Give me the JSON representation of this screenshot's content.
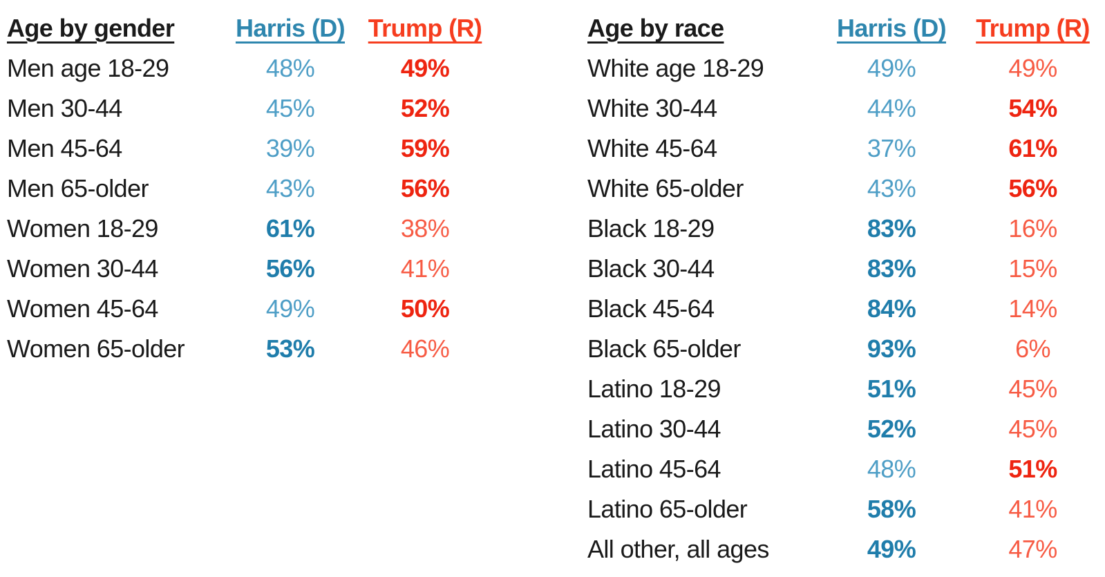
{
  "colors": {
    "background": "#ffffff",
    "text": "#1a1a1a",
    "harris_header": "#2e86ae",
    "harris_strong": "#1f7dab",
    "harris_soft": "#4e9ec6",
    "trump_header": "#f63d1f",
    "trump_strong": "#ee2410",
    "trump_soft": "#f75b44"
  },
  "tables": [
    {
      "title": "Age by gender",
      "harris_header": "Harris (D)",
      "trump_header": "Trump (R)",
      "rows": [
        {
          "label": "Men age 18-29",
          "harris": "48%",
          "harris_bold": false,
          "trump": "49%",
          "trump_bold": true
        },
        {
          "label": "Men 30-44",
          "harris": "45%",
          "harris_bold": false,
          "trump": "52%",
          "trump_bold": true
        },
        {
          "label": "Men 45-64",
          "harris": "39%",
          "harris_bold": false,
          "trump": "59%",
          "trump_bold": true
        },
        {
          "label": "Men 65-older",
          "harris": "43%",
          "harris_bold": false,
          "trump": "56%",
          "trump_bold": true
        },
        {
          "label": "Women 18-29",
          "harris": "61%",
          "harris_bold": true,
          "trump": "38%",
          "trump_bold": false
        },
        {
          "label": "Women 30-44",
          "harris": "56%",
          "harris_bold": true,
          "trump": "41%",
          "trump_bold": false
        },
        {
          "label": "Women 45-64",
          "harris": "49%",
          "harris_bold": false,
          "trump": "50%",
          "trump_bold": true
        },
        {
          "label": "Women 65-older",
          "harris": "53%",
          "harris_bold": true,
          "trump": "46%",
          "trump_bold": false
        }
      ]
    },
    {
      "title": "Age by race",
      "harris_header": "Harris (D)",
      "trump_header": "Trump (R)",
      "rows": [
        {
          "label": "White age 18-29",
          "harris": "49%",
          "harris_bold": false,
          "trump": "49%",
          "trump_bold": false
        },
        {
          "label": "White 30-44",
          "harris": "44%",
          "harris_bold": false,
          "trump": "54%",
          "trump_bold": true
        },
        {
          "label": "White 45-64",
          "harris": "37%",
          "harris_bold": false,
          "trump": "61%",
          "trump_bold": true
        },
        {
          "label": "White 65-older",
          "harris": "43%",
          "harris_bold": false,
          "trump": "56%",
          "trump_bold": true
        },
        {
          "label": "Black 18-29",
          "harris": "83%",
          "harris_bold": true,
          "trump": "16%",
          "trump_bold": false
        },
        {
          "label": "Black 30-44",
          "harris": "83%",
          "harris_bold": true,
          "trump": "15%",
          "trump_bold": false
        },
        {
          "label": "Black 45-64",
          "harris": "84%",
          "harris_bold": true,
          "trump": "14%",
          "trump_bold": false
        },
        {
          "label": "Black 65-older",
          "harris": "93%",
          "harris_bold": true,
          "trump": "6%",
          "trump_bold": false
        },
        {
          "label": "Latino 18-29",
          "harris": "51%",
          "harris_bold": true,
          "trump": "45%",
          "trump_bold": false
        },
        {
          "label": "Latino 30-44",
          "harris": "52%",
          "harris_bold": true,
          "trump": "45%",
          "trump_bold": false
        },
        {
          "label": "Latino 45-64",
          "harris": "48%",
          "harris_bold": false,
          "trump": "51%",
          "trump_bold": true
        },
        {
          "label": "Latino 65-older",
          "harris": "58%",
          "harris_bold": true,
          "trump": "41%",
          "trump_bold": false
        },
        {
          "label": "All other, all ages",
          "harris": "49%",
          "harris_bold": true,
          "trump": "47%",
          "trump_bold": false
        }
      ]
    }
  ],
  "chart_data": [
    {
      "type": "table",
      "title": "Age by gender",
      "columns": [
        "Age by gender",
        "Harris (D)",
        "Trump (R)"
      ],
      "rows": [
        [
          "Men age 18-29",
          48,
          49
        ],
        [
          "Men 30-44",
          45,
          52
        ],
        [
          "Men 45-64",
          39,
          59
        ],
        [
          "Men 65-older",
          43,
          56
        ],
        [
          "Women 18-29",
          61,
          38
        ],
        [
          "Women 30-44",
          56,
          41
        ],
        [
          "Women 45-64",
          49,
          50
        ],
        [
          "Women 65-older",
          53,
          46
        ]
      ],
      "units": "percent",
      "note_bold_winner": true
    },
    {
      "type": "table",
      "title": "Age by race",
      "columns": [
        "Age by race",
        "Harris (D)",
        "Trump (R)"
      ],
      "rows": [
        [
          "White age 18-29",
          49,
          49
        ],
        [
          "White 30-44",
          44,
          54
        ],
        [
          "White 45-64",
          37,
          61
        ],
        [
          "White 65-older",
          43,
          56
        ],
        [
          "Black 18-29",
          83,
          16
        ],
        [
          "Black 30-44",
          83,
          15
        ],
        [
          "Black 45-64",
          84,
          14
        ],
        [
          "Black 65-older",
          93,
          6
        ],
        [
          "Latino 18-29",
          51,
          45
        ],
        [
          "Latino 30-44",
          52,
          45
        ],
        [
          "Latino 45-64",
          48,
          51
        ],
        [
          "Latino 65-older",
          58,
          41
        ],
        [
          "All other, all ages",
          49,
          47
        ]
      ],
      "units": "percent",
      "note_bold_winner": true
    }
  ]
}
